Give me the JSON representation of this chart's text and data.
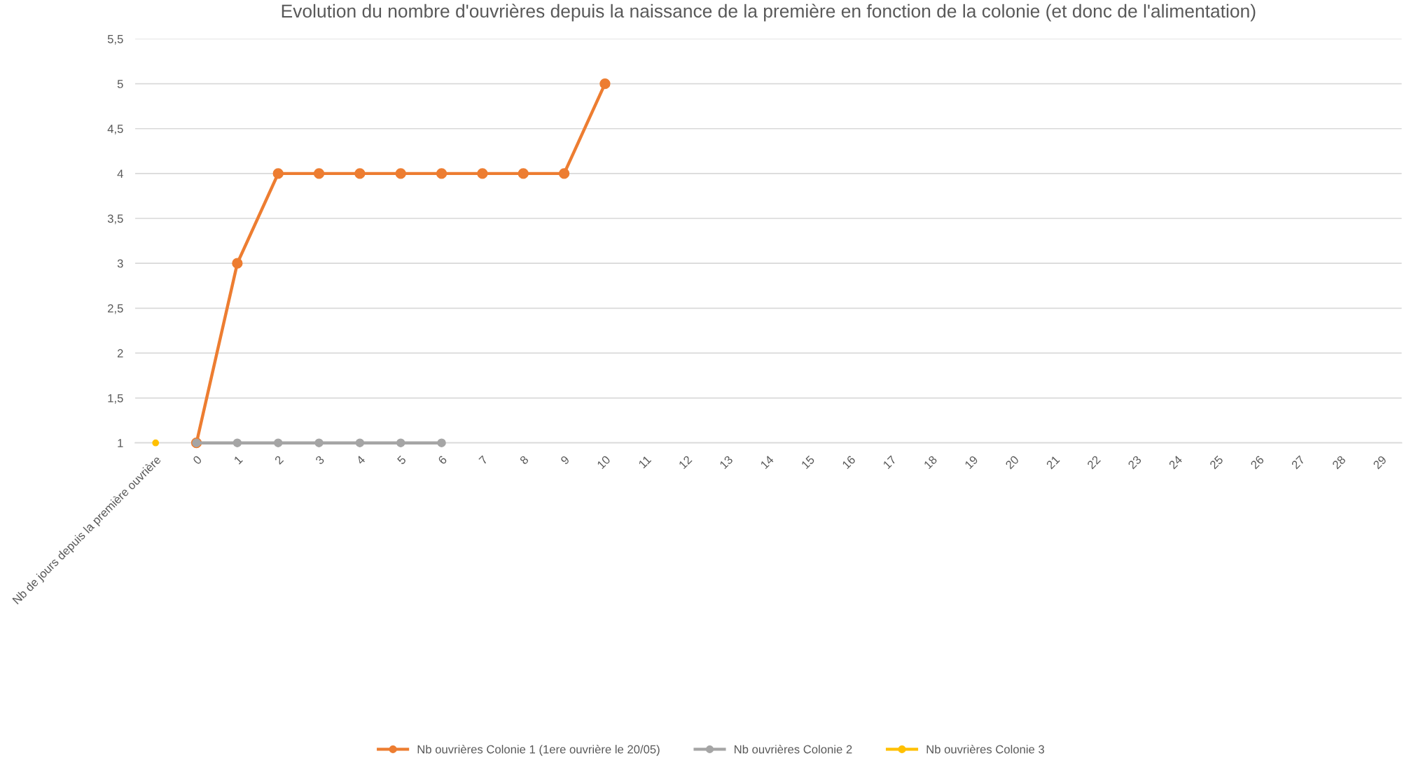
{
  "chart_data": {
    "type": "line",
    "title": "Evolution du nombre d'ouvrières depuis la naissance de la première en fonction de la colonie (et donc de l'alimentation)",
    "categories": [
      "Nb de jours depuis la première ouvrière",
      "0",
      "1",
      "2",
      "3",
      "4",
      "5",
      "6",
      "7",
      "8",
      "9",
      "10",
      "11",
      "12",
      "13",
      "14",
      "15",
      "16",
      "17",
      "18",
      "19",
      "20",
      "21",
      "22",
      "23",
      "24",
      "25",
      "26",
      "27",
      "28",
      "29"
    ],
    "series": [
      {
        "name": "Nb ouvrières Colonie 1 (1ere ouvrière le 20/05)",
        "color": "#ed7d31",
        "values": [
          null,
          1,
          3,
          4,
          4,
          4,
          4,
          4,
          4,
          4,
          4,
          5,
          null,
          null,
          null,
          null,
          null,
          null,
          null,
          null,
          null,
          null,
          null,
          null,
          null,
          null,
          null,
          null,
          null,
          null,
          null
        ]
      },
      {
        "name": "Nb ouvrières Colonie 2",
        "color": "#a5a5a5",
        "values": [
          null,
          1,
          1,
          1,
          1,
          1,
          1,
          1,
          null,
          null,
          null,
          null,
          null,
          null,
          null,
          null,
          null,
          null,
          null,
          null,
          null,
          null,
          null,
          null,
          null,
          null,
          null,
          null,
          null,
          null,
          null
        ]
      },
      {
        "name": "Nb ouvrières Colonie 3",
        "color": "#ffc000",
        "values": [
          1,
          null,
          null,
          null,
          null,
          null,
          null,
          null,
          null,
          null,
          null,
          null,
          null,
          null,
          null,
          null,
          null,
          null,
          null,
          null,
          null,
          null,
          null,
          null,
          null,
          null,
          null,
          null,
          null,
          null,
          null
        ]
      }
    ],
    "ylim": [
      1,
      5.5
    ],
    "yticks": [
      1,
      {
        "value": 1.5,
        "label": "1,5"
      },
      2,
      {
        "value": 2.5,
        "label": "2,5"
      },
      3,
      {
        "value": 3.5,
        "label": "3,5"
      },
      4,
      {
        "value": 4.5,
        "label": "4,5"
      },
      5,
      {
        "value": 5.5,
        "label": "5,5"
      }
    ],
    "grid": "y",
    "legend": "bottom",
    "marker": "circle",
    "line_style": "solid"
  }
}
